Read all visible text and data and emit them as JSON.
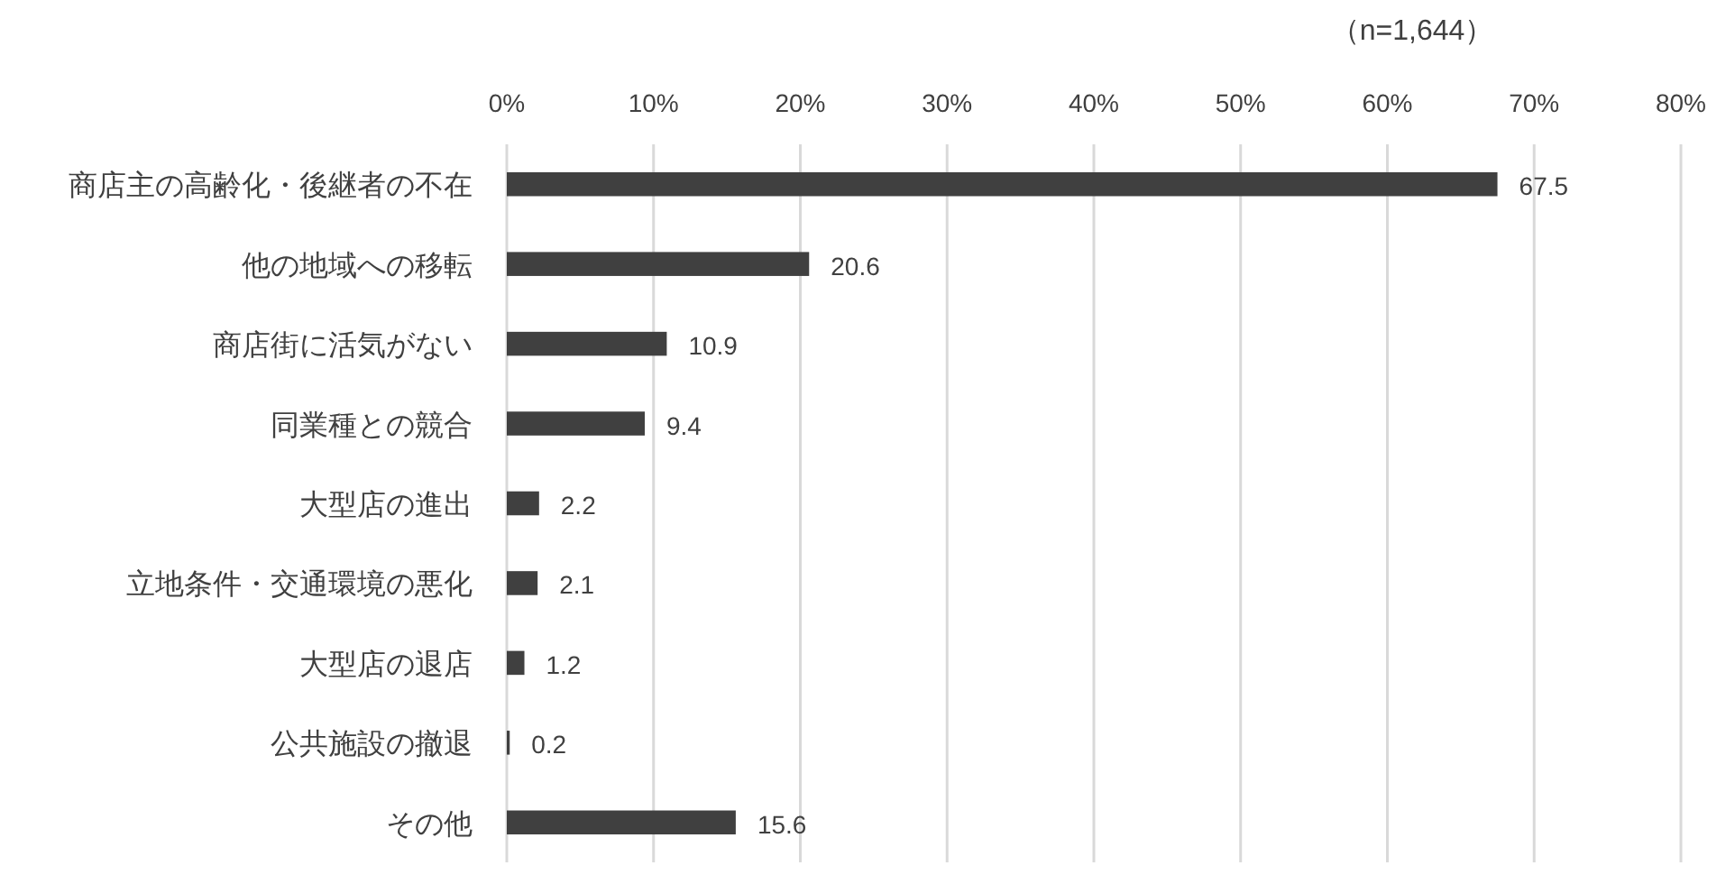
{
  "chart_data": {
    "type": "bar",
    "orientation": "horizontal",
    "categories": [
      "商店主の高齢化・後継者の不在",
      "他の地域への移転",
      "商店街に活気がない",
      "同業種との競合",
      "大型店の進出",
      "立地条件・交通環境の悪化",
      "大型店の退店",
      "公共施設の撤退",
      "その他"
    ],
    "values": [
      67.5,
      20.6,
      10.9,
      9.4,
      2.2,
      2.1,
      1.2,
      0.2,
      15.6
    ],
    "color": "#404040",
    "xlim": [
      0,
      80
    ],
    "xticks": [
      {
        "value": 0,
        "label": "0%"
      },
      {
        "value": 10,
        "label": "10%"
      },
      {
        "value": 20,
        "label": "20%"
      },
      {
        "value": 30,
        "label": "30%"
      },
      {
        "value": 40,
        "label": "40%"
      },
      {
        "value": 50,
        "label": "50%"
      },
      {
        "value": 60,
        "label": "60%"
      },
      {
        "value": 70,
        "label": "70%"
      },
      {
        "value": 80,
        "label": "80%"
      }
    ],
    "grid": "x",
    "data_labels": true,
    "annotations": [
      "（n=1,644）"
    ]
  }
}
